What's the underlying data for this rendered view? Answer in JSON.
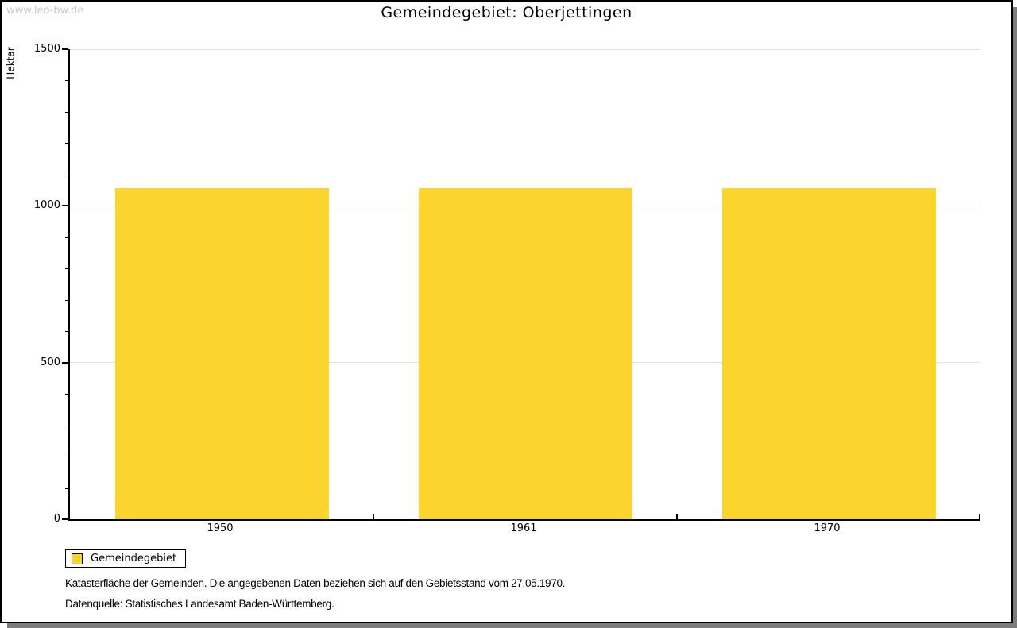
{
  "watermark": "www.leo-bw.de",
  "title": "Gemeindegebiet: Oberjettingen",
  "chart_data": {
    "type": "bar",
    "title": "Gemeindegebiet: Oberjettingen",
    "categories": [
      "1950",
      "1961",
      "1970"
    ],
    "series": [
      {
        "name": "Gemeindegebiet",
        "values": [
          1056,
          1056,
          1056
        ]
      }
    ],
    "xlabel": "",
    "ylabel": "Hektar",
    "ylim": [
      0,
      1500
    ],
    "yticks": [
      0,
      500,
      1000,
      1500
    ],
    "minor_tick_interval": 100,
    "grid": true,
    "legend_position": "bottom-left",
    "bar_color": "#FCD42E"
  },
  "legend": {
    "label": "Gemeindegebiet",
    "swatch_color": "#FCD42E"
  },
  "footer": {
    "line1": "Katasterfläche der Gemeinden. Die angegebenen Daten beziehen sich auf den Gebietsstand vom 27.05.1970.",
    "line2": "Datenquelle: Statistisches Landesamt Baden-Württemberg."
  },
  "colors": {
    "bar": "#FCD42E",
    "grid": "#E2E2E2",
    "axis": "#000000",
    "watermark": "#C9C9C9",
    "shadow": "#7D7D7D",
    "background": "#FFFFFF"
  }
}
